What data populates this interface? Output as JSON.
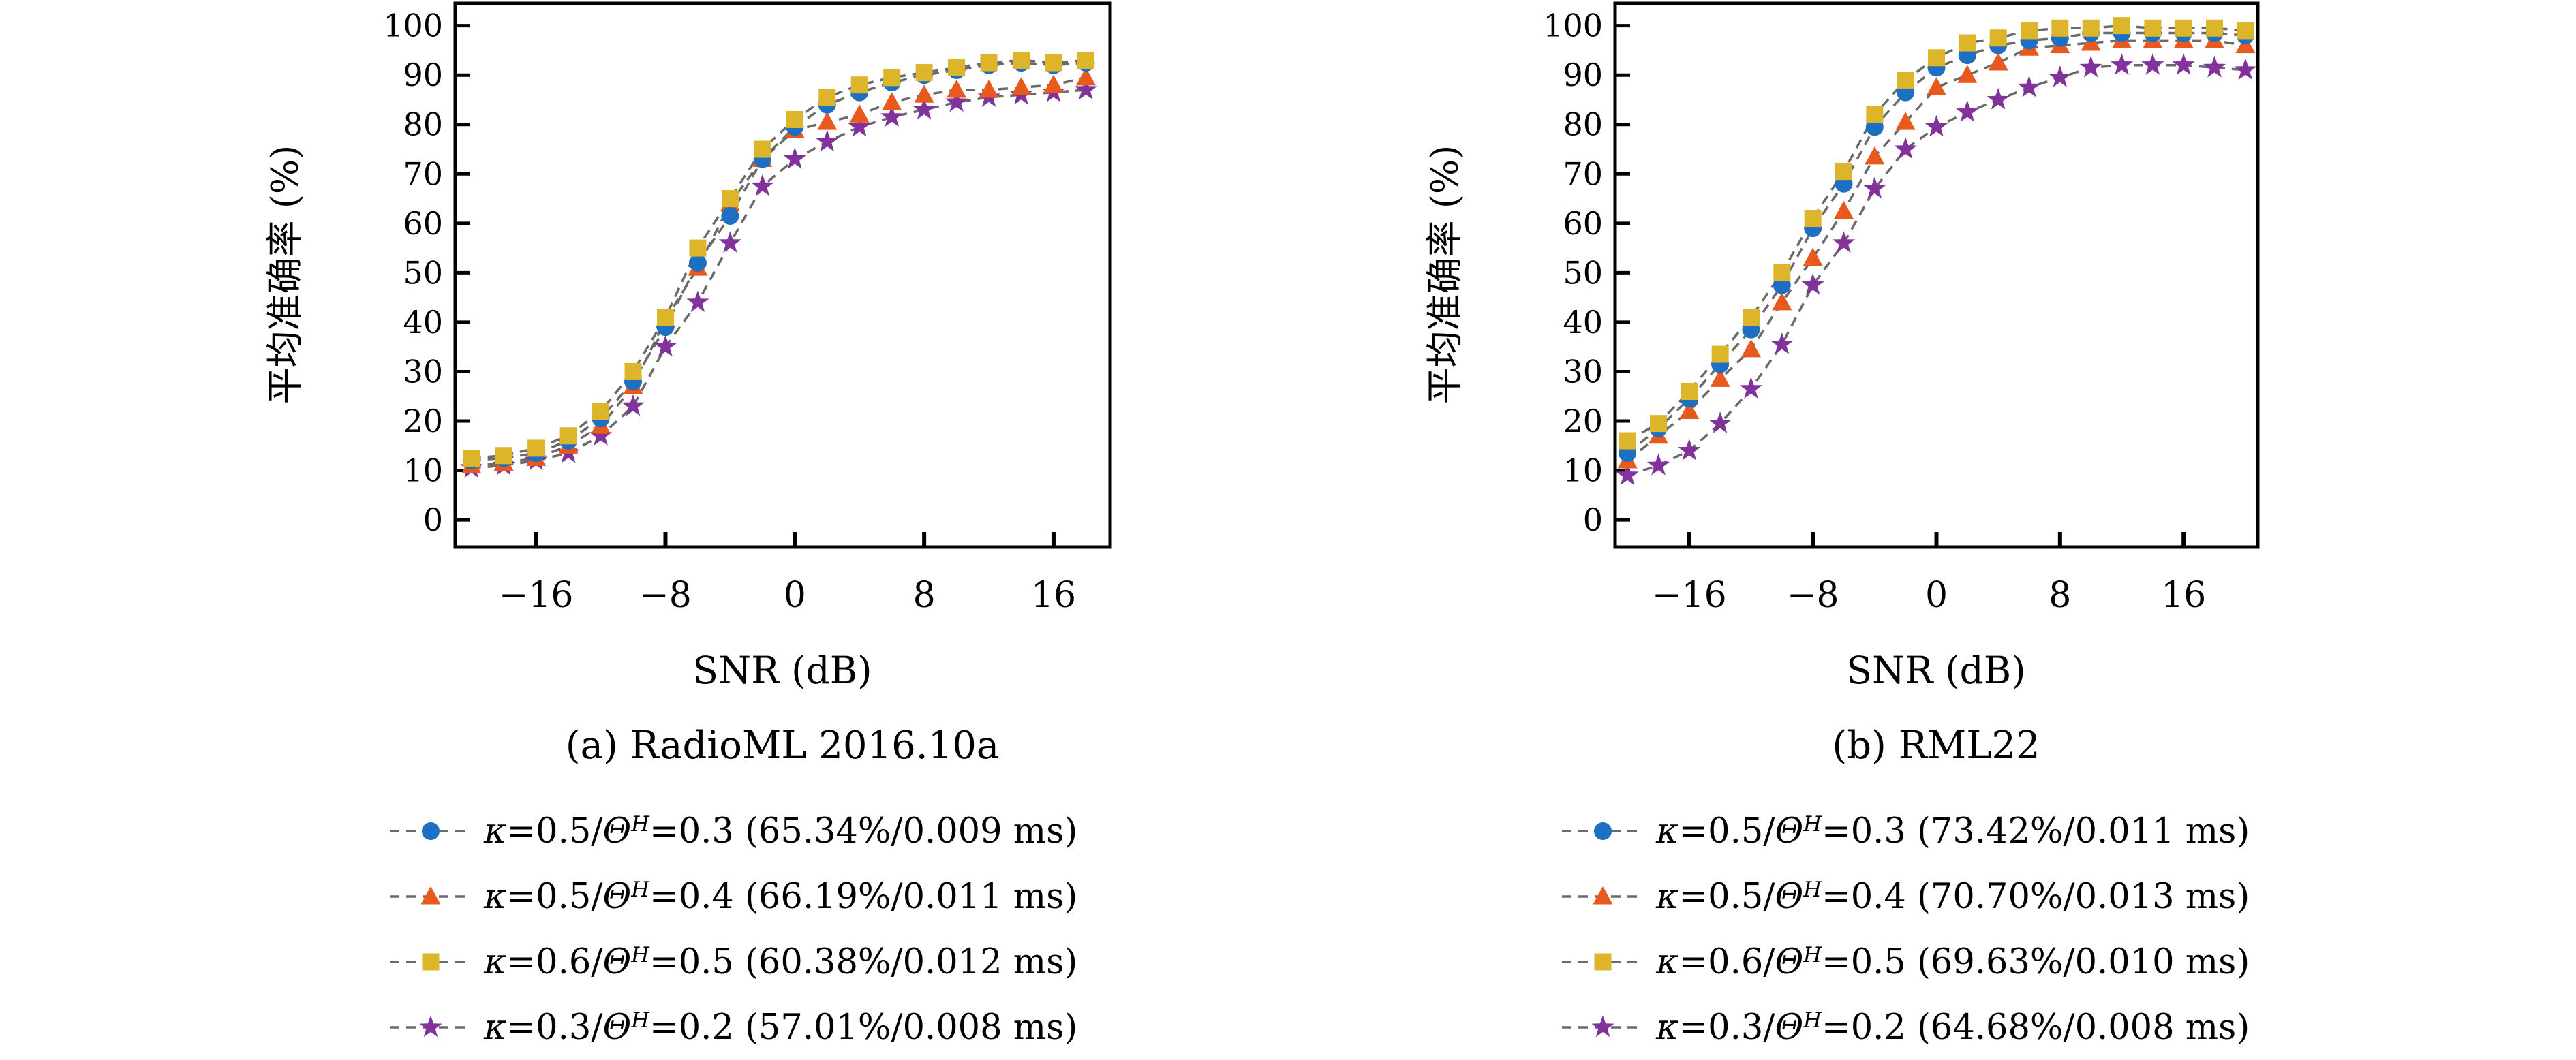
{
  "style": {
    "background": "#ffffff",
    "axis_color": "#000000",
    "dash_line_color": "#6a6a6a",
    "marker_colors": {
      "circle": "#1c6fc2",
      "triangle": "#e8591d",
      "square": "#ddb52a",
      "star": "#82339b"
    }
  },
  "chart_data": [
    {
      "type": "line",
      "title": "(a) RadioML 2016.10a",
      "xlabel": "SNR (dB)",
      "ylabel": "平均准确率 (%)",
      "grid": false,
      "line_style": "dashed",
      "legend_position": "below",
      "xlim": [
        -21,
        19.5
      ],
      "ylim": [
        -5.5,
        104.5
      ],
      "xticks": [
        -16,
        -8,
        0,
        8,
        16
      ],
      "yticks": [
        0,
        10,
        20,
        30,
        40,
        50,
        60,
        70,
        80,
        90,
        100
      ],
      "x": [
        -20,
        -18,
        -16,
        -14,
        -12,
        -10,
        -8,
        -6,
        -4,
        -2,
        0,
        2,
        4,
        6,
        8,
        10,
        12,
        14,
        16,
        18
      ],
      "series": [
        {
          "name": "κ=0.5/Θᴴ=0.3",
          "kappa": "0.5",
          "theta": "0.3",
          "accuracy": "65.34%",
          "latency": "0.009 ms",
          "marker": "circle",
          "color": "#1c6fc2",
          "values": [
            12,
            12.5,
            13.5,
            16,
            20.5,
            28,
            39,
            52,
            61.5,
            73,
            79.5,
            84,
            86.5,
            88.5,
            90,
            91,
            92,
            92.5,
            92,
            92.5
          ]
        },
        {
          "name": "κ=0.5/Θᴴ=0.4",
          "kappa": "0.5",
          "theta": "0.4",
          "accuracy": "66.19%",
          "latency": "0.011 ms",
          "marker": "triangle",
          "color": "#e8591d",
          "values": [
            11,
            11.5,
            12.5,
            15,
            19,
            27,
            40.5,
            51,
            64,
            73,
            78.8,
            80.5,
            82,
            84.5,
            86,
            87,
            87,
            87.5,
            88,
            89.5
          ]
        },
        {
          "name": "κ=0.6/Θᴴ=0.5",
          "kappa": "0.6",
          "theta": "0.5",
          "accuracy": "60.38%",
          "latency": "0.012 ms",
          "marker": "square",
          "color": "#ddb52a",
          "values": [
            12.5,
            13,
            14.5,
            17,
            22,
            30,
            41,
            55,
            65,
            75,
            81,
            85.5,
            88,
            89.5,
            90.5,
            91.5,
            92.5,
            93,
            92.5,
            93
          ]
        },
        {
          "name": "κ=0.3/Θᴴ=0.2",
          "kappa": "0.3",
          "theta": "0.2",
          "accuracy": "57.01%",
          "latency": "0.008 ms",
          "marker": "star",
          "color": "#82339b",
          "values": [
            10.5,
            11,
            12,
            13.5,
            17,
            23,
            35,
            44,
            56,
            67.5,
            73,
            76.5,
            79.5,
            81.5,
            83,
            84.5,
            85.5,
            86,
            86.5,
            87
          ]
        }
      ]
    },
    {
      "type": "line",
      "title": "(b) RML22",
      "xlabel": "SNR (dB)",
      "ylabel": "平均准确率 (%)",
      "grid": false,
      "line_style": "dashed",
      "legend_position": "below",
      "xlim": [
        -20.8,
        20.8
      ],
      "ylim": [
        -5.5,
        104.5
      ],
      "xticks": [
        -16,
        -8,
        0,
        8,
        16
      ],
      "yticks": [
        0,
        10,
        20,
        30,
        40,
        50,
        60,
        70,
        80,
        90,
        100
      ],
      "x": [
        -20,
        -18,
        -16,
        -14,
        -12,
        -10,
        -8,
        -6,
        -4,
        -2,
        0,
        2,
        4,
        6,
        8,
        10,
        12,
        14,
        16,
        18,
        20
      ],
      "series": [
        {
          "name": "κ=0.5/Θᴴ=0.3",
          "kappa": "0.5",
          "theta": "0.3",
          "accuracy": "73.42%",
          "latency": "0.011 ms",
          "marker": "circle",
          "color": "#1c6fc2",
          "values": [
            13.5,
            18.5,
            24.5,
            31.5,
            38.5,
            47.5,
            59,
            68,
            79.5,
            86.5,
            91.5,
            94,
            96,
            97,
            97.5,
            98.5,
            98.5,
            98.5,
            98.5,
            98.5,
            98
          ]
        },
        {
          "name": "κ=0.5/Θᴴ=0.4",
          "kappa": "0.5",
          "theta": "0.4",
          "accuracy": "70.70%",
          "latency": "0.013 ms",
          "marker": "triangle",
          "color": "#e8591d",
          "values": [
            12,
            17,
            22,
            28.5,
            34.5,
            44,
            53,
            62.5,
            73.5,
            80.5,
            87.5,
            90,
            92.5,
            95.5,
            96,
            96.5,
            97,
            97,
            97,
            97,
            96
          ]
        },
        {
          "name": "κ=0.6/Θᴴ=0.5",
          "kappa": "0.6",
          "theta": "0.5",
          "accuracy": "69.63%",
          "latency": "0.010 ms",
          "marker": "square",
          "color": "#ddb52a",
          "values": [
            16,
            19.5,
            26,
            33.5,
            41,
            50,
            61,
            70.5,
            82,
            89,
            93.5,
            96.5,
            97.5,
            99,
            99.5,
            99.5,
            100,
            99.5,
            99.5,
            99.5,
            99
          ]
        },
        {
          "name": "κ=0.3/Θᴴ=0.2",
          "kappa": "0.3",
          "theta": "0.2",
          "accuracy": "64.68%",
          "latency": "0.008 ms",
          "marker": "star",
          "color": "#82339b",
          "values": [
            9,
            11,
            14,
            19.5,
            26.5,
            35.5,
            47.5,
            56,
            67,
            75,
            79.5,
            82.5,
            85,
            87.5,
            89.5,
            91.5,
            92,
            92,
            92,
            91.5,
            91
          ]
        }
      ]
    }
  ]
}
